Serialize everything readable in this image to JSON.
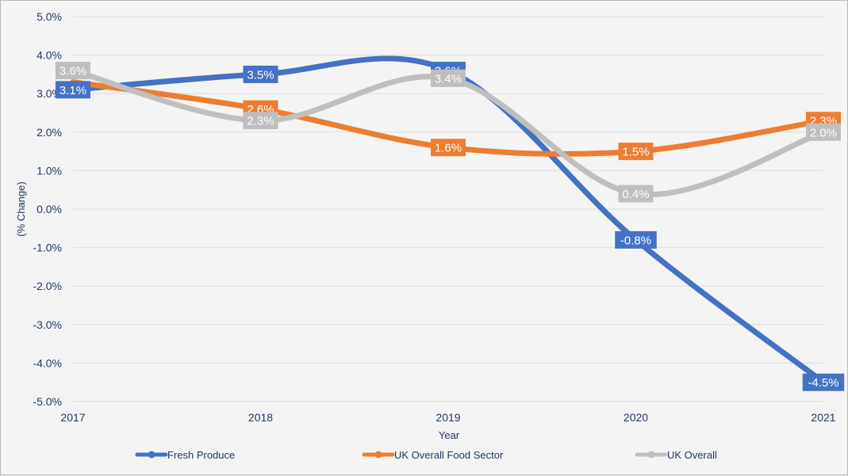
{
  "chart_data": {
    "type": "line",
    "categories": [
      "2017",
      "2018",
      "2019",
      "2020",
      "2021"
    ],
    "xlabel": "Year",
    "ylabel": "(% Change)",
    "ylim": [
      -5.0,
      5.0
    ],
    "yticks": [
      "5.0%",
      "4.0%",
      "3.0%",
      "2.0%",
      "1.0%",
      "0.0%",
      "-1.0%",
      "-2.0%",
      "-3.0%",
      "-4.0%",
      "-5.0%"
    ],
    "grid": true,
    "legend_position": "bottom",
    "series": [
      {
        "name": "Fresh Produce",
        "color": "#4472c4",
        "values": [
          3.1,
          3.5,
          3.6,
          -0.8,
          -4.5
        ],
        "labels": [
          "3.1%",
          "3.5%",
          "3.6%",
          "-0.8%",
          "-4.5%"
        ]
      },
      {
        "name": "UK Overall Food Sector",
        "color": "#ed7d31",
        "values": [
          3.3,
          2.6,
          1.6,
          1.5,
          2.3
        ],
        "labels": [
          "",
          "2.6%",
          "1.6%",
          "1.5%",
          "2.3%"
        ]
      },
      {
        "name": "UK Overall",
        "color": "#bfbfbf",
        "values": [
          3.6,
          2.3,
          3.4,
          0.4,
          2.0
        ],
        "labels": [
          "3.6%",
          "2.3%",
          "3.4%",
          "0.4%",
          "2.0%"
        ]
      }
    ]
  }
}
